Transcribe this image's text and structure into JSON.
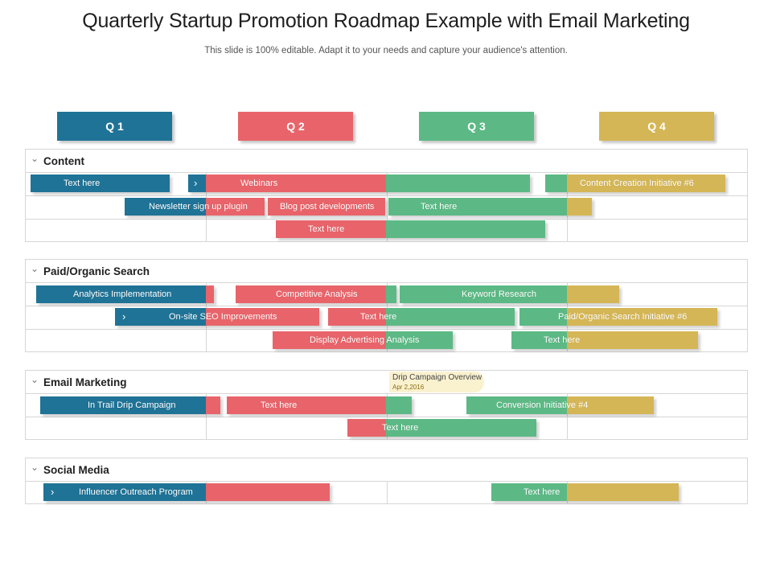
{
  "title": "Quarterly Startup Promotion Roadmap Example with Email Marketing",
  "subtitle": "This slide is 100% editable. Adapt it to your needs and capture your audience's attention.",
  "colors": {
    "q1": "#1f7396",
    "q2": "#e8646a",
    "q3": "#5cb985",
    "q4": "#d5b656"
  },
  "quarters": [
    "Q 1",
    "Q 2",
    "Q 3",
    "Q 4"
  ],
  "sections": {
    "content": {
      "title": "Content"
    },
    "paid": {
      "title": "Paid/Organic Search"
    },
    "email": {
      "title": "Email Marketing"
    },
    "social": {
      "title": "Social Media"
    }
  },
  "callout": {
    "title": "Drip Campaign Overview",
    "date": "Apr 2,2016"
  },
  "tasks": {
    "t01": "Text here",
    "t02": "Webinars",
    "t03": "Content Creation Initiative  #6",
    "t04": "Newsletter sign up plugin",
    "t05": "Blog post developments",
    "t06": "Text here",
    "t07": "Text here",
    "t08": "Analytics  Implementation",
    "t09": "Competitive  Analysis",
    "t10": "Keyword Research",
    "t11": "On-site SEO Improvements",
    "t12": "Text here",
    "t13": "Paid/Organic Search Initiative   #6",
    "t14": "Display  Advertising Analysis",
    "t15": "Text here",
    "t16": "In Trail Drip Campaign",
    "t17": "Text here",
    "t18": "Conversion Initiative  #4",
    "t19": "Text here",
    "t20": "Influencer Outreach Program",
    "t21": "Text here"
  }
}
